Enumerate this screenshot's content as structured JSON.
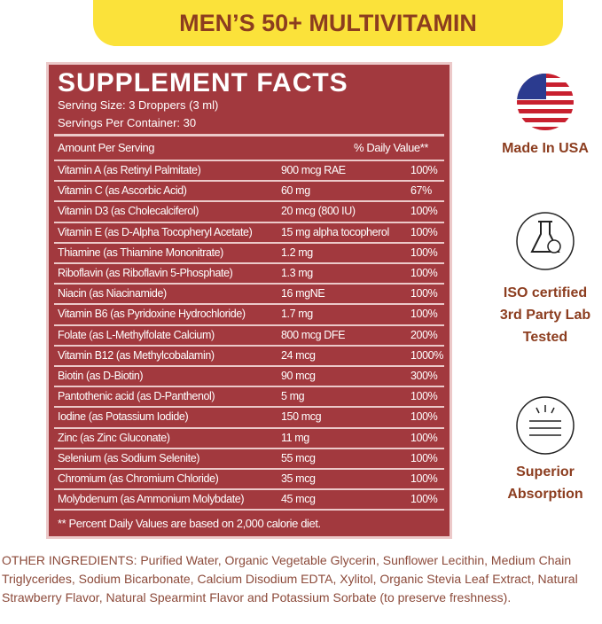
{
  "header": {
    "title": "MEN’S 50+ MULTIVITAMIN"
  },
  "panel": {
    "title": "SUPPLEMENT FACTS",
    "serving_size": "Serving Size: 3 Droppers (3 ml)",
    "servings_per_container": "Servings Per Container: 30",
    "header": {
      "amount": "Amount Per Serving",
      "daily_value": "% Daily Value**"
    },
    "rows": [
      [
        "Vitamin A (as Retinyl Palmitate)",
        "900 mcg RAE",
        "100%"
      ],
      [
        "Vitamin C (as Ascorbic Acid)",
        "60 mg",
        "67%"
      ],
      [
        "Vitamin D3 (as Cholecalciferol)",
        "20 mcg (800 IU)",
        "100%"
      ],
      [
        "Vitamin E (as D-Alpha Tocopheryl Acetate)",
        "15 mg alpha tocopherol",
        "100%"
      ],
      [
        "Thiamine (as Thiamine Mononitrate)",
        "1.2 mg",
        "100%"
      ],
      [
        "Riboflavin (as Riboflavin 5-Phosphate)",
        "1.3 mg",
        "100%"
      ],
      [
        "Niacin (as Niacinamide)",
        "16 mgNE",
        "100%"
      ],
      [
        "Vitamin B6 (as Pyridoxine Hydrochloride)",
        "1.7 mg",
        "100%"
      ],
      [
        "Folate (as L-Methylfolate Calcium)",
        "800 mcg DFE",
        "200%"
      ],
      [
        "Vitamin B12 (as Methylcobalamin)",
        "24 mcg",
        "1000%"
      ],
      [
        "Biotin (as D-Biotin)",
        "90 mcg",
        "300%"
      ],
      [
        "Pantothenic acid (as D-Panthenol)",
        "5 mg",
        "100%"
      ],
      [
        "Iodine (as Potassium Iodide)",
        "150 mcg",
        "100%"
      ],
      [
        "Zinc (as Zinc Gluconate)",
        "11 mg",
        "100%"
      ],
      [
        "Selenium (as Sodium Selenite)",
        "55 mcg",
        "100%"
      ],
      [
        "Chromium (as Chromium Chloride)",
        "35 mcg",
        "100%"
      ],
      [
        "Molybdenum (as Ammonium Molybdate)",
        "45 mcg",
        "100%"
      ]
    ],
    "footnote": "** Percent Daily Values are based on 2,000 calorie diet."
  },
  "badges": [
    {
      "lines": [
        "Made In USA"
      ]
    },
    {
      "lines": [
        "ISO certified",
        "3rd Party Lab",
        "Tested"
      ]
    },
    {
      "lines": [
        "Superior",
        "Absorption"
      ]
    }
  ],
  "other_ingredients": "OTHER INGREDIENTS: Purified Water, Organic Vegetable Glycerin, Sunflower Lecithin, Medium Chain Triglycerides, Sodium Bicarbonate, Calcium Disodium EDTA, Xylitol, Organic Stevia Leaf Extract, Natural Strawberry Flavor, Natural Spearmint Flavor and Potassium Sorbate (to preserve freshness)."
}
